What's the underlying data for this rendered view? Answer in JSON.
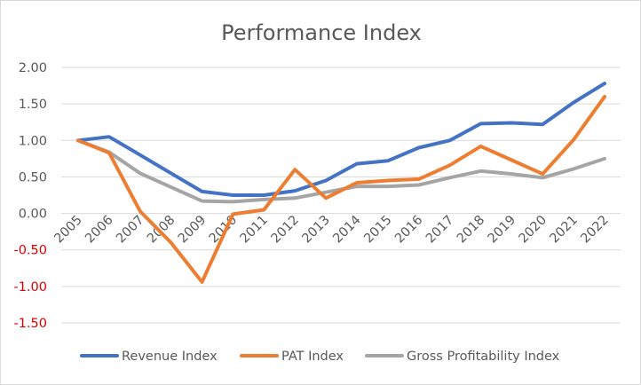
{
  "chart_data": {
    "type": "line",
    "title": "Performance Index",
    "categories": [
      "2005",
      "2006",
      "2007",
      "2008",
      "2009",
      "2010",
      "2011",
      "2012",
      "2013",
      "2014",
      "2015",
      "2016",
      "2017",
      "2018",
      "2019",
      "2020",
      "2021",
      "2022"
    ],
    "y_ticks": [
      "2.00",
      "1.50",
      "1.00",
      "0.50",
      "0.00",
      "-0.50",
      "-1.00",
      "-1.50"
    ],
    "ylim": [
      -1.5,
      2.0
    ],
    "grid": true,
    "legend_position": "bottom",
    "series": [
      {
        "name": "Revenue Index",
        "color": "#4472C4",
        "values": [
          1.0,
          1.05,
          0.8,
          0.55,
          0.3,
          0.25,
          0.25,
          0.31,
          0.45,
          0.68,
          0.72,
          0.9,
          1.0,
          1.23,
          1.24,
          1.22,
          1.52,
          1.78
        ]
      },
      {
        "name": "PAT Index",
        "color": "#ED7D31",
        "values": [
          1.0,
          0.83,
          0.03,
          -0.4,
          -0.94,
          -0.01,
          0.05,
          0.6,
          0.21,
          0.42,
          0.45,
          0.47,
          0.66,
          0.92,
          0.73,
          0.54,
          1.01,
          1.6
        ]
      },
      {
        "name": "Gross Profitability Index",
        "color": "#A5A5A5",
        "values": [
          1.0,
          0.84,
          0.55,
          0.36,
          0.17,
          0.16,
          0.19,
          0.21,
          0.29,
          0.37,
          0.37,
          0.39,
          0.49,
          0.58,
          0.54,
          0.49,
          0.61,
          0.75
        ]
      }
    ]
  }
}
